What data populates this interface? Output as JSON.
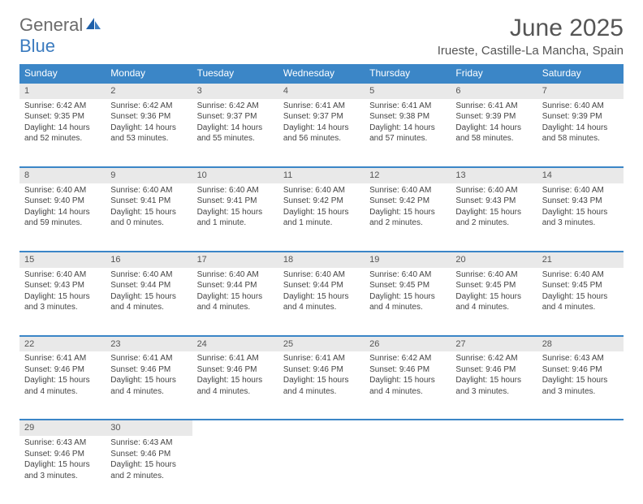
{
  "logo": {
    "part1": "General",
    "part2": "Blue"
  },
  "title": "June 2025",
  "location": "Irueste, Castille-La Mancha, Spain",
  "colors": {
    "header_bg": "#3b86c7",
    "header_text": "#ffffff",
    "daynum_bg": "#e9e9e9",
    "border": "#3b86c7",
    "text": "#444444",
    "logo_blue": "#3b7bbf",
    "logo_gray": "#6b6b6b"
  },
  "weekdays": [
    "Sunday",
    "Monday",
    "Tuesday",
    "Wednesday",
    "Thursday",
    "Friday",
    "Saturday"
  ],
  "weeks": [
    [
      {
        "day": "1",
        "sunrise": "Sunrise: 6:42 AM",
        "sunset": "Sunset: 9:35 PM",
        "daylight1": "Daylight: 14 hours",
        "daylight2": "and 52 minutes."
      },
      {
        "day": "2",
        "sunrise": "Sunrise: 6:42 AM",
        "sunset": "Sunset: 9:36 PM",
        "daylight1": "Daylight: 14 hours",
        "daylight2": "and 53 minutes."
      },
      {
        "day": "3",
        "sunrise": "Sunrise: 6:42 AM",
        "sunset": "Sunset: 9:37 PM",
        "daylight1": "Daylight: 14 hours",
        "daylight2": "and 55 minutes."
      },
      {
        "day": "4",
        "sunrise": "Sunrise: 6:41 AM",
        "sunset": "Sunset: 9:37 PM",
        "daylight1": "Daylight: 14 hours",
        "daylight2": "and 56 minutes."
      },
      {
        "day": "5",
        "sunrise": "Sunrise: 6:41 AM",
        "sunset": "Sunset: 9:38 PM",
        "daylight1": "Daylight: 14 hours",
        "daylight2": "and 57 minutes."
      },
      {
        "day": "6",
        "sunrise": "Sunrise: 6:41 AM",
        "sunset": "Sunset: 9:39 PM",
        "daylight1": "Daylight: 14 hours",
        "daylight2": "and 58 minutes."
      },
      {
        "day": "7",
        "sunrise": "Sunrise: 6:40 AM",
        "sunset": "Sunset: 9:39 PM",
        "daylight1": "Daylight: 14 hours",
        "daylight2": "and 58 minutes."
      }
    ],
    [
      {
        "day": "8",
        "sunrise": "Sunrise: 6:40 AM",
        "sunset": "Sunset: 9:40 PM",
        "daylight1": "Daylight: 14 hours",
        "daylight2": "and 59 minutes."
      },
      {
        "day": "9",
        "sunrise": "Sunrise: 6:40 AM",
        "sunset": "Sunset: 9:41 PM",
        "daylight1": "Daylight: 15 hours",
        "daylight2": "and 0 minutes."
      },
      {
        "day": "10",
        "sunrise": "Sunrise: 6:40 AM",
        "sunset": "Sunset: 9:41 PM",
        "daylight1": "Daylight: 15 hours",
        "daylight2": "and 1 minute."
      },
      {
        "day": "11",
        "sunrise": "Sunrise: 6:40 AM",
        "sunset": "Sunset: 9:42 PM",
        "daylight1": "Daylight: 15 hours",
        "daylight2": "and 1 minute."
      },
      {
        "day": "12",
        "sunrise": "Sunrise: 6:40 AM",
        "sunset": "Sunset: 9:42 PM",
        "daylight1": "Daylight: 15 hours",
        "daylight2": "and 2 minutes."
      },
      {
        "day": "13",
        "sunrise": "Sunrise: 6:40 AM",
        "sunset": "Sunset: 9:43 PM",
        "daylight1": "Daylight: 15 hours",
        "daylight2": "and 2 minutes."
      },
      {
        "day": "14",
        "sunrise": "Sunrise: 6:40 AM",
        "sunset": "Sunset: 9:43 PM",
        "daylight1": "Daylight: 15 hours",
        "daylight2": "and 3 minutes."
      }
    ],
    [
      {
        "day": "15",
        "sunrise": "Sunrise: 6:40 AM",
        "sunset": "Sunset: 9:43 PM",
        "daylight1": "Daylight: 15 hours",
        "daylight2": "and 3 minutes."
      },
      {
        "day": "16",
        "sunrise": "Sunrise: 6:40 AM",
        "sunset": "Sunset: 9:44 PM",
        "daylight1": "Daylight: 15 hours",
        "daylight2": "and 4 minutes."
      },
      {
        "day": "17",
        "sunrise": "Sunrise: 6:40 AM",
        "sunset": "Sunset: 9:44 PM",
        "daylight1": "Daylight: 15 hours",
        "daylight2": "and 4 minutes."
      },
      {
        "day": "18",
        "sunrise": "Sunrise: 6:40 AM",
        "sunset": "Sunset: 9:44 PM",
        "daylight1": "Daylight: 15 hours",
        "daylight2": "and 4 minutes."
      },
      {
        "day": "19",
        "sunrise": "Sunrise: 6:40 AM",
        "sunset": "Sunset: 9:45 PM",
        "daylight1": "Daylight: 15 hours",
        "daylight2": "and 4 minutes."
      },
      {
        "day": "20",
        "sunrise": "Sunrise: 6:40 AM",
        "sunset": "Sunset: 9:45 PM",
        "daylight1": "Daylight: 15 hours",
        "daylight2": "and 4 minutes."
      },
      {
        "day": "21",
        "sunrise": "Sunrise: 6:40 AM",
        "sunset": "Sunset: 9:45 PM",
        "daylight1": "Daylight: 15 hours",
        "daylight2": "and 4 minutes."
      }
    ],
    [
      {
        "day": "22",
        "sunrise": "Sunrise: 6:41 AM",
        "sunset": "Sunset: 9:46 PM",
        "daylight1": "Daylight: 15 hours",
        "daylight2": "and 4 minutes."
      },
      {
        "day": "23",
        "sunrise": "Sunrise: 6:41 AM",
        "sunset": "Sunset: 9:46 PM",
        "daylight1": "Daylight: 15 hours",
        "daylight2": "and 4 minutes."
      },
      {
        "day": "24",
        "sunrise": "Sunrise: 6:41 AM",
        "sunset": "Sunset: 9:46 PM",
        "daylight1": "Daylight: 15 hours",
        "daylight2": "and 4 minutes."
      },
      {
        "day": "25",
        "sunrise": "Sunrise: 6:41 AM",
        "sunset": "Sunset: 9:46 PM",
        "daylight1": "Daylight: 15 hours",
        "daylight2": "and 4 minutes."
      },
      {
        "day": "26",
        "sunrise": "Sunrise: 6:42 AM",
        "sunset": "Sunset: 9:46 PM",
        "daylight1": "Daylight: 15 hours",
        "daylight2": "and 4 minutes."
      },
      {
        "day": "27",
        "sunrise": "Sunrise: 6:42 AM",
        "sunset": "Sunset: 9:46 PM",
        "daylight1": "Daylight: 15 hours",
        "daylight2": "and 3 minutes."
      },
      {
        "day": "28",
        "sunrise": "Sunrise: 6:43 AM",
        "sunset": "Sunset: 9:46 PM",
        "daylight1": "Daylight: 15 hours",
        "daylight2": "and 3 minutes."
      }
    ],
    [
      {
        "day": "29",
        "sunrise": "Sunrise: 6:43 AM",
        "sunset": "Sunset: 9:46 PM",
        "daylight1": "Daylight: 15 hours",
        "daylight2": "and 3 minutes."
      },
      {
        "day": "30",
        "sunrise": "Sunrise: 6:43 AM",
        "sunset": "Sunset: 9:46 PM",
        "daylight1": "Daylight: 15 hours",
        "daylight2": "and 2 minutes."
      },
      {
        "empty": true
      },
      {
        "empty": true
      },
      {
        "empty": true
      },
      {
        "empty": true
      },
      {
        "empty": true
      }
    ]
  ]
}
